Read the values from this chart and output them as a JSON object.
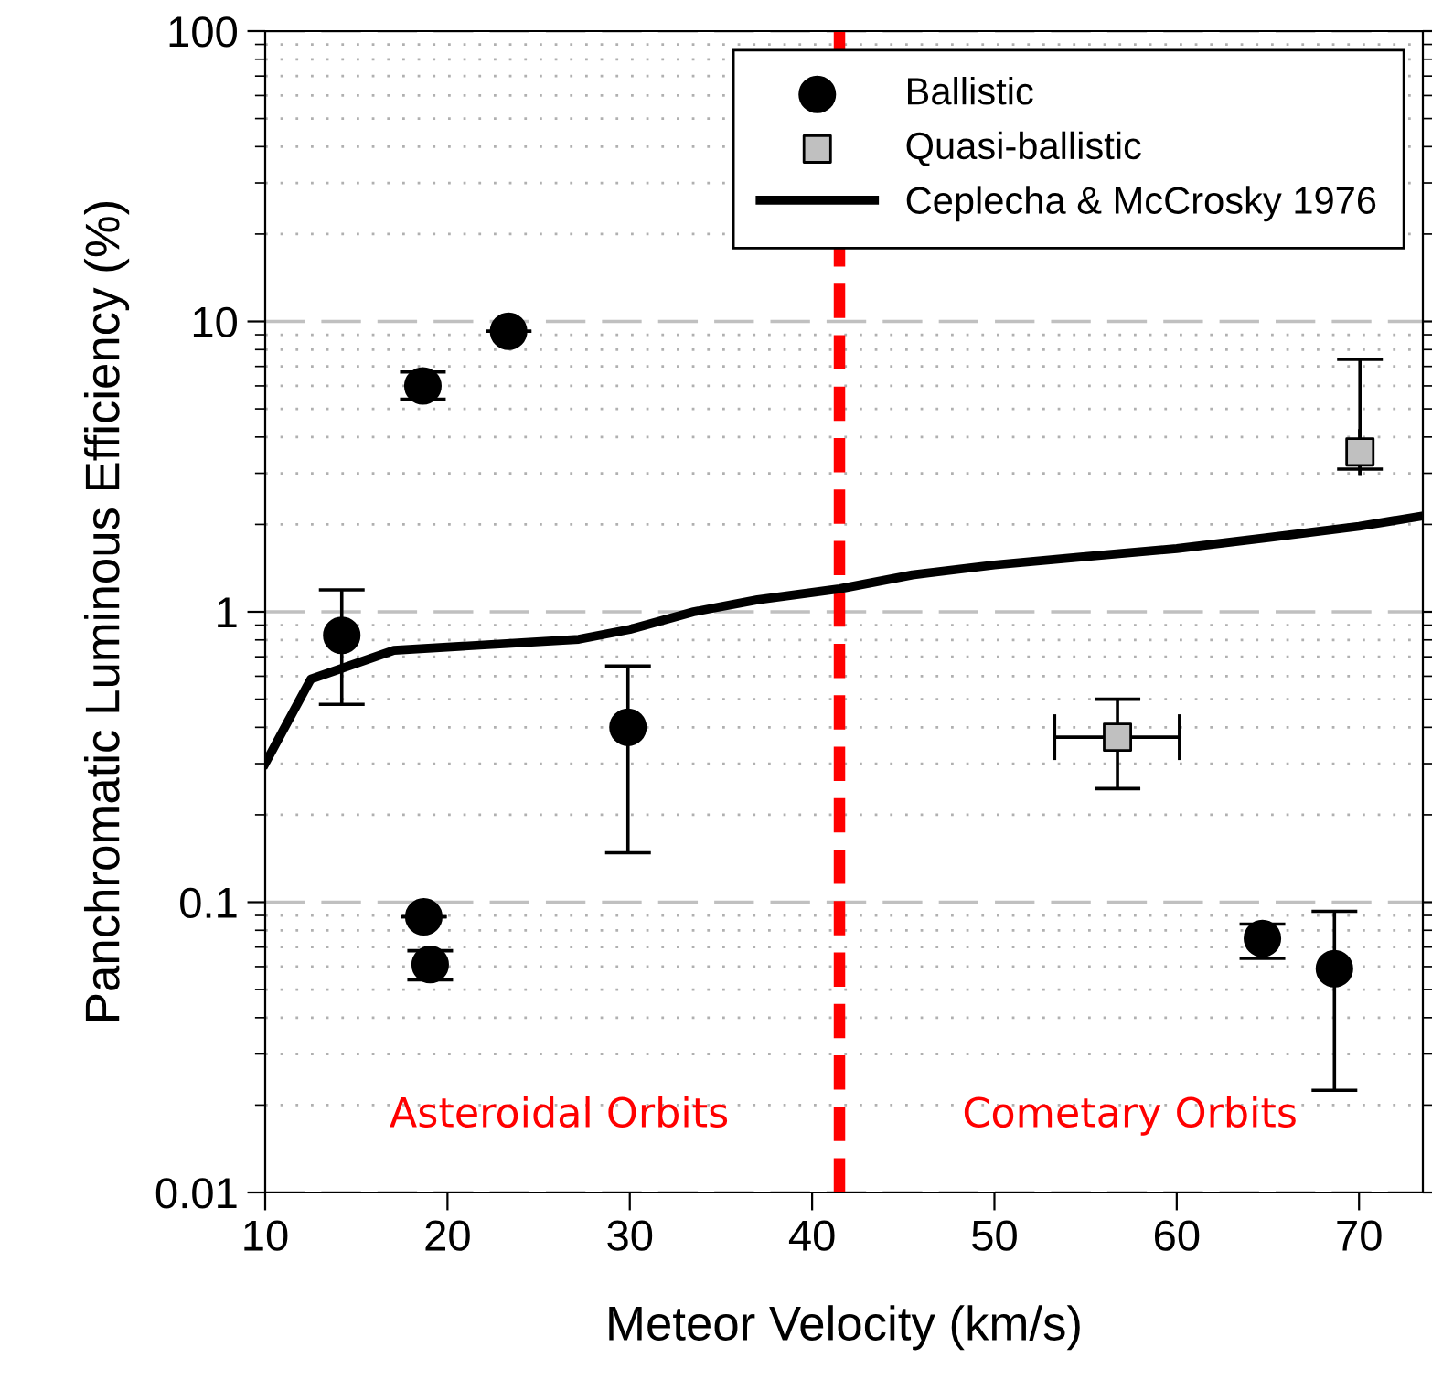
{
  "chart_data": {
    "type": "scatter",
    "xlabel": "Meteor Velocity (km/s)",
    "ylabel": "Panchromatic Luminous Efficiency (%)",
    "log": "y",
    "xlim": [
      10,
      73.5
    ],
    "ylim": [
      0.01,
      100
    ],
    "xticks": [
      10,
      20,
      30,
      40,
      50,
      60,
      70
    ],
    "yticks": [
      0.01,
      0.1,
      1,
      10,
      100
    ],
    "grid": "y",
    "legend": "top right",
    "series": [
      {
        "name": "Ballistic",
        "marker": "circle",
        "color": "#000000",
        "x": [
          14.2,
          18.65,
          23.35,
          29.9,
          18.7,
          19.05,
          64.7,
          68.65
        ],
        "values": [
          0.83,
          6.0,
          9.25,
          0.4,
          0.089,
          0.061,
          0.075,
          0.059
        ],
        "errors": [
          [
            0.48,
            1.19
          ],
          [
            5.4,
            6.7
          ],
          null,
          [
            0.148,
            0.65
          ],
          null,
          [
            0.054,
            0.068
          ],
          [
            0.064,
            0.084
          ],
          [
            0.0225,
            0.093
          ]
        ]
      },
      {
        "name": "Quasi-ballistic",
        "marker": "square",
        "color": "#c0c0c0",
        "x": [
          56.75,
          70.05
        ],
        "values": [
          0.37,
          3.55
        ],
        "errors": [
          [
            0.246,
            0.5
          ],
          [
            3.1,
            7.4
          ]
        ],
        "xerrors": [
          [
            53.3,
            60.15
          ],
          null
        ]
      },
      {
        "name": "Ceplecha & McCrosky 1976",
        "type": "line",
        "marker": "none",
        "line_style": "solid",
        "color": "#000000",
        "x": [
          10,
          12.5,
          17.06,
          27.2,
          30,
          33.5,
          37,
          41.5,
          45.5,
          50,
          55,
          60,
          65,
          70,
          73.5
        ],
        "values": [
          0.3,
          0.586,
          0.737,
          0.804,
          0.87,
          1.0,
          1.1,
          1.2,
          1.34,
          1.45,
          1.55,
          1.65,
          1.8,
          1.97,
          2.14
        ]
      }
    ],
    "ref_lines": [
      {
        "axis": "x",
        "value": 41.5,
        "label": null,
        "color": "#ff0000",
        "line_style": "dashed"
      }
    ],
    "annotations": [
      "Asteroidal Orbits",
      "Cometary Orbits"
    ]
  }
}
